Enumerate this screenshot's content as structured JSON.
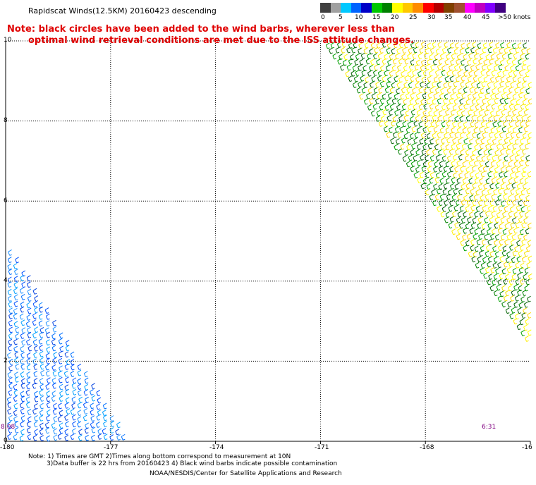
{
  "title": "Rapidscat Winds(12.5KM) 20160423 descending",
  "note": {
    "line1": "Note: black circles have been added to the wind barbs, wherever less than",
    "line2": "optimal wind retrieval conditions are met due to the ISS attitude changes."
  },
  "colorbar": {
    "colors": [
      "#404040",
      "#a0a0a0",
      "#00c8ff",
      "#0064ff",
      "#0000c8",
      "#00c800",
      "#008000",
      "#ffff00",
      "#ffc800",
      "#ff8c00",
      "#ff0000",
      "#b40000",
      "#804000",
      "#a05030",
      "#ff00ff",
      "#c000c0",
      "#8000ff",
      "#400080"
    ],
    "labels": [
      "0",
      "5",
      "10",
      "15",
      "20",
      "25",
      "30",
      "35",
      "40",
      "45",
      ">50 knots"
    ]
  },
  "map": {
    "x_ticks": [
      "-180",
      "-177",
      "-174",
      "-171",
      "-168",
      "-16"
    ],
    "y_ticks": [
      "10",
      "8",
      "6",
      "4",
      "2",
      "0"
    ],
    "lon_range": [
      -180,
      -165
    ],
    "lat_range": [
      0,
      10
    ]
  },
  "swaths": {
    "left_time": "8:08",
    "right_time": "6:31",
    "left_color_range": [
      "#0064ff",
      "#00c8ff"
    ],
    "right_color_range": [
      "#ffff00",
      "#008000"
    ]
  },
  "footer": {
    "line1": "Note: 1) Times are GMT 2)Times along bottom correspond to measurement at 10N",
    "line2": "3)Data buffer is 22 hrs from 20160423 4) Black wind barbs indicate possible contamination",
    "line3": "NOAA/NESDIS/Center for Satellite Applications and Research"
  }
}
